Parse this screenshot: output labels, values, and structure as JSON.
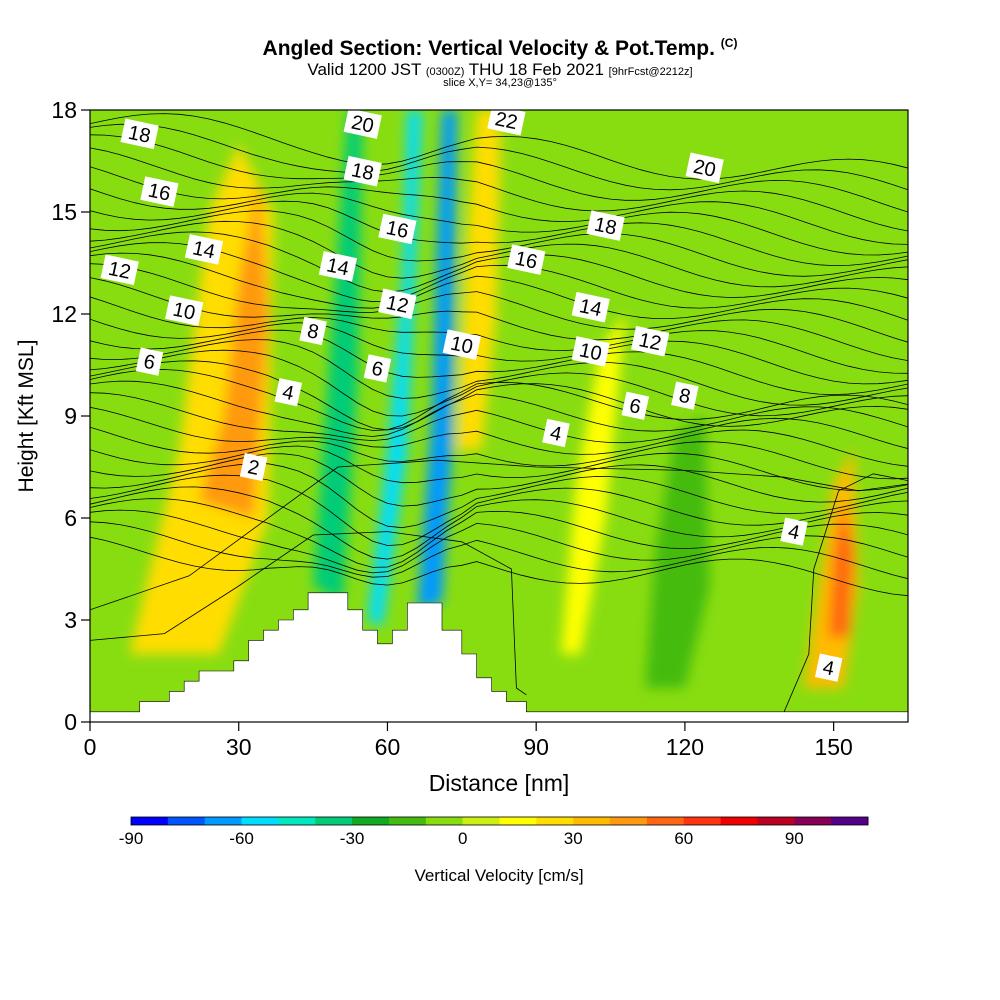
{
  "title": {
    "main": "Angled Section: Vertical Velocity & Pot.Temp.",
    "main_note": "(C)",
    "valid_prefix": "Valid 1200 JST",
    "valid_utc": "(0300Z)",
    "valid_date": "THU 18 Feb 2021",
    "valid_fcst": "[9hrFcst@2212z]",
    "slice": "slice X,Y= 34,23@135°"
  },
  "chart_data": {
    "type": "heatmap",
    "xlabel": "Distance [nm]",
    "ylabel": "Height [Kft MSL]",
    "xlim": [
      0,
      165
    ],
    "ylim": [
      0,
      18
    ],
    "x_ticks": [
      0,
      30,
      60,
      90,
      120,
      150
    ],
    "y_ticks": [
      0,
      3,
      6,
      9,
      12,
      15,
      18
    ],
    "colorbar": {
      "label": "Vertical Velocity [cm/s]",
      "min": -90,
      "max": 110,
      "step": 10,
      "tick_labels": [
        "-90",
        "-60",
        "-30",
        "0",
        "30",
        "60",
        "90"
      ],
      "tick_values": [
        -90,
        -60,
        -30,
        0,
        30,
        60,
        90
      ],
      "colors": [
        "#0000ff",
        "#0055ff",
        "#0099ff",
        "#00ddff",
        "#00e8c0",
        "#00cc77",
        "#11aa22",
        "#44bb11",
        "#88dd11",
        "#ccee11",
        "#ffff00",
        "#ffdd00",
        "#ffbb00",
        "#ff9911",
        "#ff6611",
        "#ff3311",
        "#ee0000",
        "#bb0022",
        "#880055",
        "#550088"
      ]
    },
    "terrain_profile": [
      [
        0,
        0.3
      ],
      [
        10,
        0.3
      ],
      [
        10,
        0.6
      ],
      [
        16,
        0.6
      ],
      [
        16,
        0.9
      ],
      [
        19,
        0.9
      ],
      [
        19,
        1.2
      ],
      [
        22,
        1.2
      ],
      [
        22,
        1.5
      ],
      [
        29,
        1.5
      ],
      [
        29,
        1.8
      ],
      [
        32,
        1.8
      ],
      [
        32,
        2.4
      ],
      [
        35,
        2.4
      ],
      [
        35,
        2.7
      ],
      [
        38,
        2.7
      ],
      [
        38,
        3.0
      ],
      [
        41,
        3.0
      ],
      [
        41,
        3.3
      ],
      [
        44,
        3.3
      ],
      [
        44,
        3.8
      ],
      [
        52,
        3.8
      ],
      [
        52,
        3.3
      ],
      [
        55,
        3.3
      ],
      [
        55,
        2.7
      ],
      [
        58,
        2.7
      ],
      [
        58,
        2.3
      ],
      [
        61,
        2.3
      ],
      [
        61,
        2.7
      ],
      [
        64,
        2.7
      ],
      [
        64,
        3.5
      ],
      [
        71,
        3.5
      ],
      [
        71,
        2.7
      ],
      [
        75,
        2.7
      ],
      [
        75,
        2.0
      ],
      [
        78,
        2.0
      ],
      [
        78,
        1.3
      ],
      [
        81,
        1.3
      ],
      [
        81,
        0.9
      ],
      [
        84,
        0.9
      ],
      [
        84,
        0.6
      ],
      [
        88,
        0.6
      ],
      [
        88,
        0.3
      ],
      [
        165,
        0.3
      ]
    ],
    "velocity_regions": [
      {
        "value": -40,
        "points": [
          [
            45,
            4
          ],
          [
            49,
            12
          ],
          [
            52,
            18
          ],
          [
            55,
            18
          ],
          [
            54,
            10
          ],
          [
            51,
            3.5
          ]
        ]
      },
      {
        "value": -70,
        "points": [
          [
            66,
            3.3
          ],
          [
            69,
            9
          ],
          [
            70,
            14
          ],
          [
            71,
            18
          ],
          [
            74,
            18
          ],
          [
            73,
            8
          ],
          [
            71,
            3.5
          ]
        ]
      },
      {
        "value": -55,
        "points": [
          [
            56,
            3
          ],
          [
            60,
            8
          ],
          [
            63,
            13
          ],
          [
            64,
            18
          ],
          [
            67,
            18
          ],
          [
            64,
            8
          ],
          [
            59,
            2.8
          ]
        ]
      },
      {
        "value": 25,
        "points": [
          [
            8,
            2
          ],
          [
            18,
            8
          ],
          [
            24,
            15
          ],
          [
            30,
            17
          ],
          [
            37,
            15
          ],
          [
            36,
            6
          ],
          [
            26,
            2
          ]
        ]
      },
      {
        "value": 40,
        "points": [
          [
            22,
            6.5
          ],
          [
            27,
            9
          ],
          [
            30,
            13
          ],
          [
            34,
            16
          ],
          [
            36,
            12
          ],
          [
            33,
            6
          ]
        ]
      },
      {
        "value": 20,
        "points": [
          [
            74,
            8
          ],
          [
            76,
            14
          ],
          [
            78,
            18
          ],
          [
            83,
            18
          ],
          [
            82,
            12
          ],
          [
            79,
            8
          ]
        ]
      },
      {
        "value": 30,
        "points": [
          [
            144,
            1
          ],
          [
            147,
            4
          ],
          [
            150,
            7
          ],
          [
            154,
            8
          ],
          [
            155,
            4
          ],
          [
            152,
            1
          ]
        ]
      },
      {
        "value": 50,
        "points": [
          [
            149,
            2.5
          ],
          [
            150,
            5
          ],
          [
            152,
            6.5
          ],
          [
            154,
            5
          ],
          [
            153,
            2.5
          ]
        ]
      },
      {
        "value": -20,
        "points": [
          [
            112,
            1
          ],
          [
            114,
            5
          ],
          [
            118,
            8.5
          ],
          [
            124,
            9
          ],
          [
            125,
            4
          ],
          [
            120,
            1
          ]
        ]
      },
      {
        "value": 15,
        "points": [
          [
            95,
            2
          ],
          [
            98,
            7
          ],
          [
            103,
            11
          ],
          [
            108,
            12
          ],
          [
            104,
            6
          ],
          [
            99,
            2
          ]
        ]
      }
    ],
    "isentrope_labels": [
      {
        "text": "18",
        "x": 10,
        "y": 17.3
      },
      {
        "text": "16",
        "x": 14,
        "y": 15.6
      },
      {
        "text": "14",
        "x": 23,
        "y": 13.9
      },
      {
        "text": "12",
        "x": 6,
        "y": 13.3
      },
      {
        "text": "10",
        "x": 19,
        "y": 12.1
      },
      {
        "text": "6",
        "x": 12,
        "y": 10.6
      },
      {
        "text": "20",
        "x": 55,
        "y": 17.6
      },
      {
        "text": "18",
        "x": 55,
        "y": 16.2
      },
      {
        "text": "16",
        "x": 62,
        "y": 14.5
      },
      {
        "text": "14",
        "x": 50,
        "y": 13.4
      },
      {
        "text": "12",
        "x": 62,
        "y": 12.3
      },
      {
        "text": "8",
        "x": 45,
        "y": 11.5
      },
      {
        "text": "6",
        "x": 58,
        "y": 10.4
      },
      {
        "text": "4",
        "x": 40,
        "y": 9.7
      },
      {
        "text": "2",
        "x": 33,
        "y": 7.5
      },
      {
        "text": "10",
        "x": 75,
        "y": 11.1
      },
      {
        "text": "22",
        "x": 84,
        "y": 17.7
      },
      {
        "text": "16",
        "x": 88,
        "y": 13.6
      },
      {
        "text": "18",
        "x": 104,
        "y": 14.6
      },
      {
        "text": "20",
        "x": 124,
        "y": 16.3
      },
      {
        "text": "14",
        "x": 101,
        "y": 12.2
      },
      {
        "text": "12",
        "x": 113,
        "y": 11.2
      },
      {
        "text": "10",
        "x": 101,
        "y": 10.9
      },
      {
        "text": "8",
        "x": 120,
        "y": 9.6
      },
      {
        "text": "6",
        "x": 110,
        "y": 9.3
      },
      {
        "text": "4",
        "x": 94,
        "y": 8.5
      },
      {
        "text": "4",
        "x": 142,
        "y": 5.6
      },
      {
        "text": "4",
        "x": 149,
        "y": 1.6
      }
    ]
  },
  "colors": {
    "background": "#ffffff",
    "frame": "#000000",
    "terrain": "#ffffff",
    "contour": "#000000",
    "base_field": "#88dd11"
  }
}
